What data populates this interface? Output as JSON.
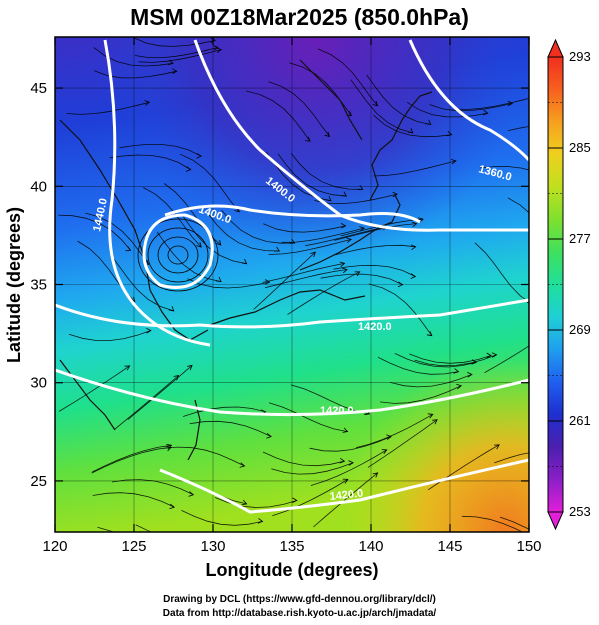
{
  "title": "MSM 00Z18Mar2025 (850.0hPa)",
  "xaxis": {
    "label": "Longitude (degrees)",
    "range": [
      120,
      150
    ],
    "ticks": [
      120,
      125,
      130,
      135,
      140,
      145,
      150
    ]
  },
  "yaxis": {
    "label": "Latitude  (degrees)",
    "range": [
      22.4,
      47.6
    ],
    "ticks": [
      25,
      30,
      35,
      40,
      45
    ]
  },
  "colorbar": {
    "range": [
      253,
      293
    ],
    "labels": [
      293,
      285,
      277,
      269,
      261,
      253
    ],
    "stops": [
      "#e31fd9",
      "#8b1fc8",
      "#4b1faf",
      "#1f2fcf",
      "#1f5fef",
      "#1f9fef",
      "#1fcfd6",
      "#1fe09a",
      "#3fe05f",
      "#7fe02f",
      "#bfe01f",
      "#efd01f",
      "#f7a01f",
      "#f7601f",
      "#f02f1f"
    ]
  },
  "contours": [
    {
      "value": "1440.0"
    },
    {
      "value": "1400.0"
    },
    {
      "value": "1400.0"
    },
    {
      "value": "1360.0"
    },
    {
      "value": "1420.0"
    },
    {
      "value": "1420.0"
    },
    {
      "value": "1420.0"
    }
  ],
  "credits": {
    "line1": "Drawing by DCL (https://www.gfd-dennou.org/library/dcl/)",
    "line2": "Data from http://database.rish.kyoto-u.ac.jp/arch/jmadata/"
  }
}
